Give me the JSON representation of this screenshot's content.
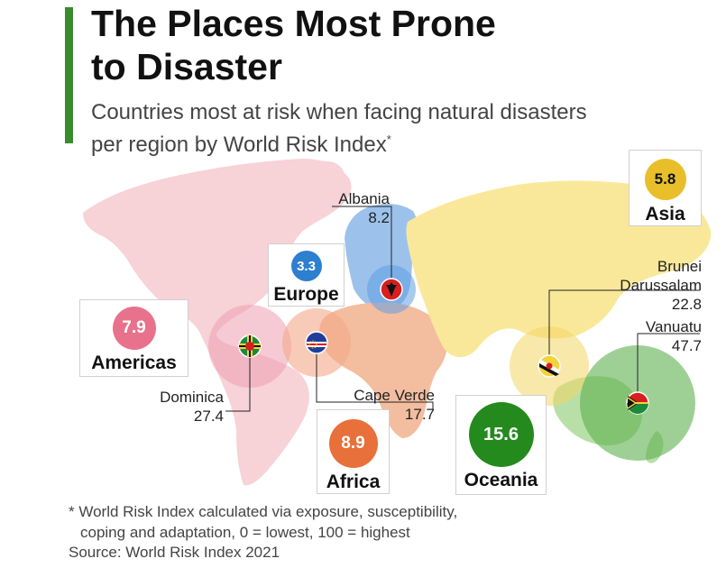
{
  "header": {
    "title_line1": "The Places Most Prone",
    "title_line2": "to Disaster",
    "subtitle_line1": "Countries most at risk when facing natural disasters",
    "subtitle_line2": "per region by World Risk Index",
    "subtitle_mark": "*"
  },
  "regions": {
    "europe": {
      "name": "Europe",
      "value": "3.3",
      "color": "#2d7fd0"
    },
    "americas": {
      "name": "Americas",
      "value": "7.9",
      "color": "#e8728b"
    },
    "africa": {
      "name": "Africa",
      "value": "8.9",
      "color": "#e8703a"
    },
    "asia": {
      "name": "Asia",
      "value": "5.8",
      "color": "#e8bf2a"
    },
    "oceania": {
      "name": "Oceania",
      "value": "15.6",
      "color": "#248a1e"
    }
  },
  "countries": {
    "albania": {
      "name": "Albania",
      "value": "8.2"
    },
    "dominica": {
      "name": "Dominica",
      "value": "27.4"
    },
    "cape_verde": {
      "name": "Cape Verde",
      "value": "17.7"
    },
    "brunei": {
      "name_line1": "Brunei",
      "name_line2": "Darussalam",
      "value": "22.8"
    },
    "vanuatu": {
      "name": "Vanuatu",
      "value": "47.7"
    }
  },
  "footnote_line1": "* World Risk Index calculated via exposure, susceptibility,",
  "footnote_line2": "coping and adaptation, 0 = lowest, 100 = highest",
  "source": "Source: World Risk Index 2021",
  "colors": {
    "americas_land": "#f7d2d7",
    "europe_land": "#9cc2ec",
    "africa_land": "#f3bd9f",
    "asia_land": "#fae89a",
    "oceania_land": "#b9dfa9",
    "accent": "#3a8a2e"
  }
}
